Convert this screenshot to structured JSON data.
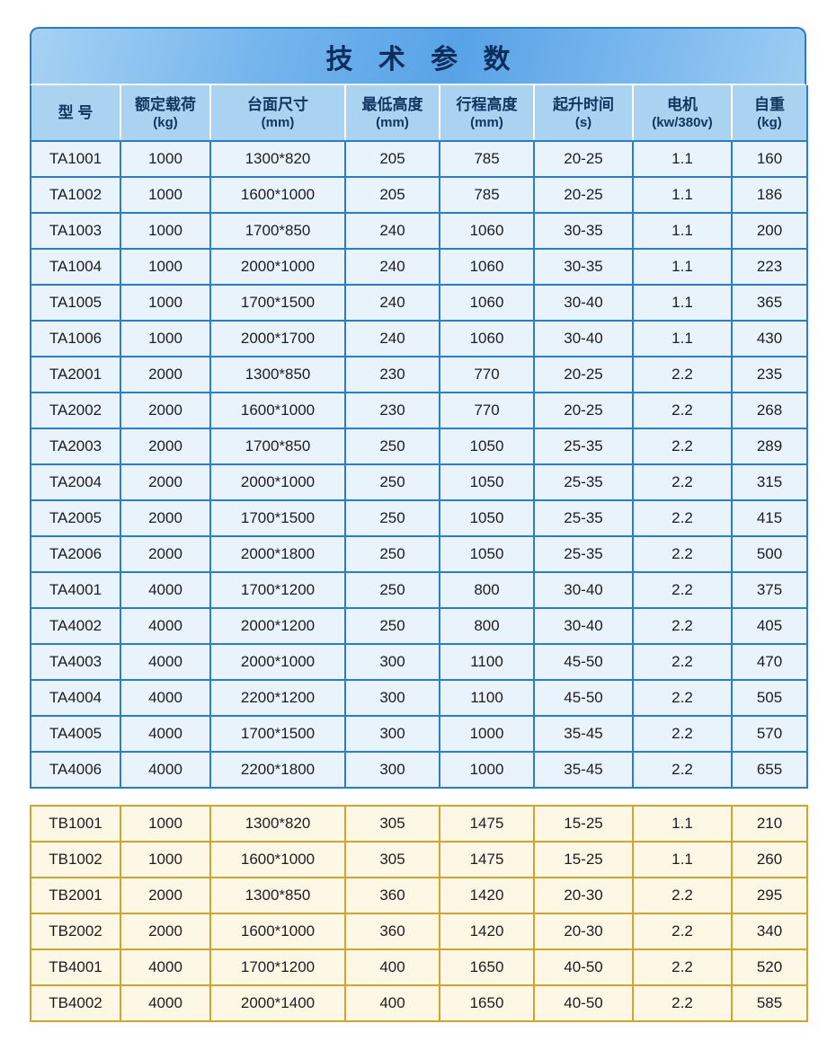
{
  "title": "技 术 参 数",
  "columns": [
    {
      "name": "型 号",
      "unit": ""
    },
    {
      "name": "额定载荷",
      "unit": "(kg)"
    },
    {
      "name": "台面尺寸",
      "unit": "(mm)"
    },
    {
      "name": "最低高度",
      "unit": "(mm)"
    },
    {
      "name": "行程高度",
      "unit": "(mm)"
    },
    {
      "name": "起升时间",
      "unit": "(s)"
    },
    {
      "name": "电机",
      "unit": "(kw/380v)"
    },
    {
      "name": "自重",
      "unit": "(kg)"
    }
  ],
  "table_a": {
    "rows": [
      [
        "TA1001",
        "1000",
        "1300*820",
        "205",
        "785",
        "20-25",
        "1.1",
        "160"
      ],
      [
        "TA1002",
        "1000",
        "1600*1000",
        "205",
        "785",
        "20-25",
        "1.1",
        "186"
      ],
      [
        "TA1003",
        "1000",
        "1700*850",
        "240",
        "1060",
        "30-35",
        "1.1",
        "200"
      ],
      [
        "TA1004",
        "1000",
        "2000*1000",
        "240",
        "1060",
        "30-35",
        "1.1",
        "223"
      ],
      [
        "TA1005",
        "1000",
        "1700*1500",
        "240",
        "1060",
        "30-40",
        "1.1",
        "365"
      ],
      [
        "TA1006",
        "1000",
        "2000*1700",
        "240",
        "1060",
        "30-40",
        "1.1",
        "430"
      ],
      [
        "TA2001",
        "2000",
        "1300*850",
        "230",
        "770",
        "20-25",
        "2.2",
        "235"
      ],
      [
        "TA2002",
        "2000",
        "1600*1000",
        "230",
        "770",
        "20-25",
        "2.2",
        "268"
      ],
      [
        "TA2003",
        "2000",
        "1700*850",
        "250",
        "1050",
        "25-35",
        "2.2",
        "289"
      ],
      [
        "TA2004",
        "2000",
        "2000*1000",
        "250",
        "1050",
        "25-35",
        "2.2",
        "315"
      ],
      [
        "TA2005",
        "2000",
        "1700*1500",
        "250",
        "1050",
        "25-35",
        "2.2",
        "415"
      ],
      [
        "TA2006",
        "2000",
        "2000*1800",
        "250",
        "1050",
        "25-35",
        "2.2",
        "500"
      ],
      [
        "TA4001",
        "4000",
        "1700*1200",
        "250",
        "800",
        "30-40",
        "2.2",
        "375"
      ],
      [
        "TA4002",
        "4000",
        "2000*1200",
        "250",
        "800",
        "30-40",
        "2.2",
        "405"
      ],
      [
        "TA4003",
        "4000",
        "2000*1000",
        "300",
        "1100",
        "45-50",
        "2.2",
        "470"
      ],
      [
        "TA4004",
        "4000",
        "2200*1200",
        "300",
        "1100",
        "45-50",
        "2.2",
        "505"
      ],
      [
        "TA4005",
        "4000",
        "1700*1500",
        "300",
        "1000",
        "35-45",
        "2.2",
        "570"
      ],
      [
        "TA4006",
        "4000",
        "2200*1800",
        "300",
        "1000",
        "35-45",
        "2.2",
        "655"
      ]
    ]
  },
  "table_b": {
    "rows": [
      [
        "TB1001",
        "1000",
        "1300*820",
        "305",
        "1475",
        "15-25",
        "1.1",
        "210"
      ],
      [
        "TB1002",
        "1000",
        "1600*1000",
        "305",
        "1475",
        "15-25",
        "1.1",
        "260"
      ],
      [
        "TB2001",
        "2000",
        "1300*850",
        "360",
        "1420",
        "20-30",
        "2.2",
        "295"
      ],
      [
        "TB2002",
        "2000",
        "1600*1000",
        "360",
        "1420",
        "20-30",
        "2.2",
        "340"
      ],
      [
        "TB4001",
        "4000",
        "1700*1200",
        "400",
        "1650",
        "40-50",
        "2.2",
        "520"
      ],
      [
        "TB4002",
        "4000",
        "2000*1400",
        "400",
        "1650",
        "40-50",
        "2.2",
        "585"
      ]
    ]
  },
  "colors": {
    "border_blue": "#2a7ccd",
    "border_gold": "#d4a32b",
    "header_bg": "#a9d3f1",
    "cell_blue_bg": "#e8f3fc",
    "cell_cream_bg": "#fdf7e6",
    "title_text": "#0b2d5c"
  }
}
